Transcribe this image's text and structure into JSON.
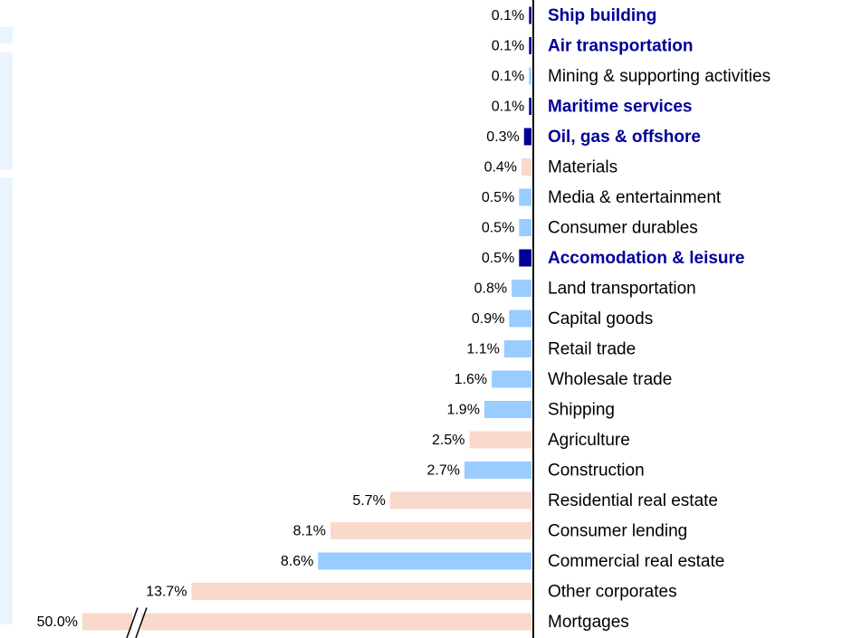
{
  "chart_data": {
    "type": "bar",
    "orientation": "horizontal",
    "categories": [
      "Ship building",
      "Air transportation",
      "Mining & supporting activities",
      "Maritime services",
      "Oil, gas & offshore",
      "Materials",
      "Media & entertainment",
      "Consumer durables",
      "Accomodation & leisure",
      "Land transportation",
      "Capital goods",
      "Retail trade",
      "Wholesale trade",
      "Shipping",
      "Agriculture",
      "Construction",
      "Residential real estate",
      "Consumer lending",
      "Commercial real estate",
      "Other corporates",
      "Mortgages"
    ],
    "values": [
      0.1,
      0.1,
      0.1,
      0.1,
      0.3,
      0.4,
      0.5,
      0.5,
      0.5,
      0.8,
      0.9,
      1.1,
      1.6,
      1.9,
      2.5,
      2.7,
      5.7,
      8.1,
      8.6,
      13.7,
      50.0
    ],
    "value_labels": [
      "0.1%",
      "0.1%",
      "0.1%",
      "0.1%",
      "0.3%",
      "0.4%",
      "0.5%",
      "0.5%",
      "0.5%",
      "0.8%",
      "0.9%",
      "1.1%",
      "1.6%",
      "1.9%",
      "2.5%",
      "2.7%",
      "5.7%",
      "8.1%",
      "8.6%",
      "13.7%",
      "50.0%"
    ],
    "colors": [
      "#000099",
      "#000099",
      "#99ccff",
      "#000099",
      "#000099",
      "#f9d9cb",
      "#99ccff",
      "#99ccff",
      "#000099",
      "#99ccff",
      "#99ccff",
      "#99ccff",
      "#99ccff",
      "#99ccff",
      "#f9d9cb",
      "#99ccff",
      "#f9d9cb",
      "#f9d9cb",
      "#99ccff",
      "#f9d9cb",
      "#f9d9cb"
    ],
    "highlight_color": "#000099",
    "xlim": [
      0,
      18.1
    ],
    "axis_break": true
  }
}
